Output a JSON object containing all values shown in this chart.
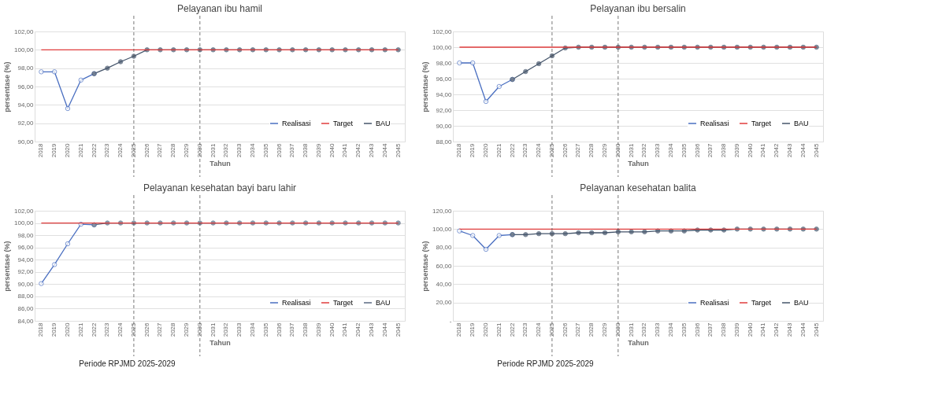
{
  "chart_data": [
    {
      "type": "line",
      "title": "Pelayanan ibu hamil",
      "xlabel": "Tahun",
      "ylabel": "persentase (%)",
      "categories": [
        "2018",
        "2019",
        "2020",
        "2021",
        "2022",
        "2023",
        "2024",
        "2025",
        "2026",
        "2027",
        "2028",
        "2029",
        "2030",
        "2031",
        "2032",
        "2033",
        "2034",
        "2035",
        "2036",
        "2037",
        "2038",
        "2039",
        "2040",
        "2041",
        "2042",
        "2043",
        "2044",
        "2045"
      ],
      "series": [
        {
          "name": "Realisasi",
          "color": "#4a6fc1",
          "marker": "circle",
          "values": [
            97.6,
            97.6,
            93.6,
            96.7,
            97.4,
            null,
            null,
            null,
            null,
            null,
            null,
            null,
            null,
            null,
            null,
            null,
            null,
            null,
            null,
            null,
            null,
            null,
            null,
            null,
            null,
            null,
            null,
            null
          ]
        },
        {
          "name": "Target",
          "color": "#e03c3c",
          "marker": "none",
          "values": [
            100,
            100,
            100,
            100,
            100,
            100,
            100,
            100,
            100,
            100,
            100,
            100,
            100,
            100,
            100,
            100,
            100,
            100,
            100,
            100,
            100,
            100,
            100,
            100,
            100,
            100,
            100,
            100
          ]
        },
        {
          "name": "BAU",
          "color": "#44546a",
          "marker": "circle",
          "values": [
            null,
            null,
            null,
            null,
            97.4,
            98.0,
            98.7,
            99.3,
            100,
            100,
            100,
            100,
            100,
            100,
            100,
            100,
            100,
            100,
            100,
            100,
            100,
            100,
            100,
            100,
            100,
            100,
            100,
            100
          ]
        }
      ],
      "ylim": [
        90,
        102
      ],
      "yticks": [
        {
          "value": 90,
          "label": "90,00"
        },
        {
          "value": 92,
          "label": "92,00"
        },
        {
          "value": 94,
          "label": "94,00"
        },
        {
          "value": 96,
          "label": "96,00"
        },
        {
          "value": 98,
          "label": "98,00"
        },
        {
          "value": 100,
          "label": "100,00"
        },
        {
          "value": 102,
          "label": "102,00"
        }
      ],
      "ref_lines": [
        {
          "axis": "x",
          "value": "2025",
          "line_style": "dashed",
          "color": "#555555"
        },
        {
          "axis": "x",
          "value": "2030",
          "line_style": "dashed",
          "color": "#555555"
        }
      ],
      "grid": "y",
      "legend": "bottom right",
      "line_style": "solid"
    },
    {
      "type": "line",
      "title": "Pelayanan ibu bersalin",
      "xlabel": "Tahun",
      "ylabel": "persentase (%)",
      "categories": [
        "2018",
        "2019",
        "2020",
        "2021",
        "2022",
        "2023",
        "2024",
        "2025",
        "2026",
        "2027",
        "2028",
        "2029",
        "2030",
        "2031",
        "2032",
        "2033",
        "2034",
        "2035",
        "2036",
        "2037",
        "2038",
        "2039",
        "2040",
        "2041",
        "2042",
        "2043",
        "2044",
        "2045"
      ],
      "series": [
        {
          "name": "Realisasi",
          "color": "#4a6fc1",
          "marker": "circle",
          "values": [
            98.0,
            98.0,
            93.1,
            95.0,
            95.9,
            null,
            null,
            null,
            null,
            null,
            null,
            null,
            null,
            null,
            null,
            null,
            null,
            null,
            null,
            null,
            null,
            null,
            null,
            null,
            null,
            null,
            null,
            null
          ]
        },
        {
          "name": "Target",
          "color": "#e03c3c",
          "marker": "none",
          "values": [
            100,
            100,
            100,
            100,
            100,
            100,
            100,
            100,
            100,
            100,
            100,
            100,
            100,
            100,
            100,
            100,
            100,
            100,
            100,
            100,
            100,
            100,
            100,
            100,
            100,
            100,
            100,
            100
          ]
        },
        {
          "name": "BAU",
          "color": "#44546a",
          "marker": "circle",
          "values": [
            null,
            null,
            null,
            null,
            95.9,
            96.9,
            97.9,
            98.9,
            99.9,
            100,
            100,
            100,
            100,
            100,
            100,
            100,
            100,
            100,
            100,
            100,
            100,
            100,
            100,
            100,
            100,
            100,
            100,
            100
          ]
        }
      ],
      "ylim": [
        88,
        102
      ],
      "yticks": [
        {
          "value": 88,
          "label": "88,00"
        },
        {
          "value": 90,
          "label": "90,00"
        },
        {
          "value": 92,
          "label": "92,00"
        },
        {
          "value": 94,
          "label": "94,00"
        },
        {
          "value": 96,
          "label": "96,00"
        },
        {
          "value": 98,
          "label": "98,00"
        },
        {
          "value": 100,
          "label": "100,00"
        },
        {
          "value": 102,
          "label": "102,00"
        }
      ],
      "ref_lines": [
        {
          "axis": "x",
          "value": "2025",
          "line_style": "dashed",
          "color": "#555555"
        },
        {
          "axis": "x",
          "value": "2030",
          "line_style": "dashed",
          "color": "#555555"
        }
      ],
      "grid": "y",
      "legend": "bottom right",
      "line_style": "solid"
    },
    {
      "type": "line",
      "title": "Pelayanan kesehatan bayi baru lahir",
      "xlabel": "Tahun",
      "ylabel": "persentase (%)",
      "categories": [
        "2018",
        "2019",
        "2020",
        "2021",
        "2022",
        "2023",
        "2024",
        "2025",
        "2026",
        "2027",
        "2028",
        "2029",
        "2030",
        "2031",
        "2032",
        "2033",
        "2034",
        "2035",
        "2036",
        "2037",
        "2038",
        "2039",
        "2040",
        "2041",
        "2042",
        "2043",
        "2044",
        "2045"
      ],
      "series": [
        {
          "name": "Realisasi",
          "color": "#4a6fc1",
          "marker": "circle",
          "values": [
            90.1,
            93.2,
            96.6,
            99.8,
            99.7,
            null,
            null,
            null,
            null,
            null,
            null,
            null,
            null,
            null,
            null,
            null,
            null,
            null,
            null,
            null,
            null,
            null,
            null,
            null,
            null,
            null,
            null,
            null
          ]
        },
        {
          "name": "Target",
          "color": "#e03c3c",
          "marker": "none",
          "values": [
            100,
            100,
            100,
            100,
            100,
            100,
            100,
            100,
            100,
            100,
            100,
            100,
            100,
            100,
            100,
            100,
            100,
            100,
            100,
            100,
            100,
            100,
            100,
            100,
            100,
            100,
            100,
            100
          ]
        },
        {
          "name": "BAU",
          "color": "#5a6a82",
          "marker": "circle",
          "values": [
            null,
            null,
            null,
            null,
            99.7,
            100,
            100,
            100,
            100,
            100,
            100,
            100,
            100,
            100,
            100,
            100,
            100,
            100,
            100,
            100,
            100,
            100,
            100,
            100,
            100,
            100,
            100,
            100
          ]
        }
      ],
      "ylim": [
        84,
        102
      ],
      "yticks": [
        {
          "value": 84,
          "label": "84,00"
        },
        {
          "value": 86,
          "label": "86,00"
        },
        {
          "value": 88,
          "label": "88,00"
        },
        {
          "value": 90,
          "label": "90,00"
        },
        {
          "value": 92,
          "label": "92,00"
        },
        {
          "value": 94,
          "label": "94,00"
        },
        {
          "value": 96,
          "label": "96,00"
        },
        {
          "value": 98,
          "label": "98,00"
        },
        {
          "value": 100,
          "label": "100,00"
        },
        {
          "value": 102,
          "label": "102,00"
        }
      ],
      "ref_lines": [
        {
          "axis": "x",
          "value": "2025",
          "line_style": "dashed",
          "color": "#555555"
        },
        {
          "axis": "x",
          "value": "2030",
          "line_style": "dashed",
          "color": "#555555"
        }
      ],
      "annotations": [
        "Periode RPJMD 2025-2029"
      ],
      "grid": "y",
      "legend": "bottom right",
      "line_style": "solid"
    },
    {
      "type": "line",
      "title": "Pelayanan kesehatan balita",
      "xlabel": "Tahun",
      "ylabel": "persentase (%)",
      "categories": [
        "2018",
        "2019",
        "2020",
        "2021",
        "2022",
        "2023",
        "2024",
        "2025",
        "2026",
        "2027",
        "2028",
        "2029",
        "2030",
        "2031",
        "2032",
        "2033",
        "2034",
        "2035",
        "2036",
        "2037",
        "2038",
        "2039",
        "2040",
        "2041",
        "2042",
        "2043",
        "2044",
        "2045"
      ],
      "series": [
        {
          "name": "Realisasi",
          "color": "#4a6fc1",
          "marker": "circle",
          "values": [
            98,
            93,
            78,
            93,
            94,
            null,
            null,
            null,
            null,
            null,
            null,
            null,
            null,
            null,
            null,
            null,
            null,
            null,
            null,
            null,
            null,
            null,
            null,
            null,
            null,
            null,
            null,
            null
          ]
        },
        {
          "name": "Target",
          "color": "#e03c3c",
          "marker": "none",
          "values": [
            100,
            100,
            100,
            100,
            100,
            100,
            100,
            100,
            100,
            100,
            100,
            100,
            100,
            100,
            100,
            100,
            100,
            100,
            100,
            100,
            100,
            100,
            100,
            100,
            100,
            100,
            100,
            100
          ]
        },
        {
          "name": "BAU",
          "color": "#44546a",
          "marker": "circle",
          "values": [
            null,
            null,
            null,
            null,
            94,
            94,
            95,
            95,
            95,
            96,
            96,
            96,
            97,
            97,
            97,
            98,
            98,
            98,
            99,
            99,
            99,
            100,
            100,
            100,
            100,
            100,
            100,
            100
          ]
        }
      ],
      "ylim": [
        0,
        120
      ],
      "yticks": [
        {
          "value": 0,
          "label": "-"
        },
        {
          "value": 20,
          "label": "20,00"
        },
        {
          "value": 40,
          "label": "40,00"
        },
        {
          "value": 60,
          "label": "60,00"
        },
        {
          "value": 80,
          "label": "80,00"
        },
        {
          "value": 100,
          "label": "100,00"
        },
        {
          "value": 120,
          "label": "120,00"
        }
      ],
      "ref_lines": [
        {
          "axis": "x",
          "value": "2025",
          "line_style": "dashed",
          "color": "#555555"
        },
        {
          "axis": "x",
          "value": "2030",
          "line_style": "dashed",
          "color": "#555555"
        }
      ],
      "annotations": [
        "Periode RPJMD 2025-2029"
      ],
      "grid": "y",
      "legend": "bottom right",
      "line_style": "solid"
    }
  ]
}
